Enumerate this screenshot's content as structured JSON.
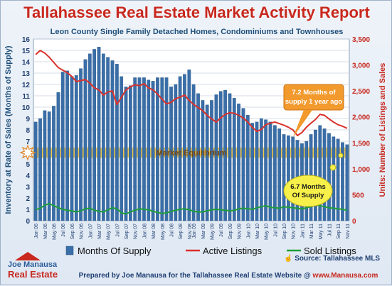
{
  "chart_data": {
    "type": "bar",
    "title": "Tallahassee Real Estate Market Activity Report",
    "subtitle": "Leon County Single Family Detached Homes, Condominiums and Townhouses",
    "ylabel_left": "Inventory at Rate of Sales (Months of Supply)",
    "ylabel_right": "Units: Number of Listings and Sales",
    "ylim_left": [
      0,
      16
    ],
    "ylim_right": [
      0,
      3500
    ],
    "yticks_left": [
      "0",
      "1",
      "2",
      "3",
      "4",
      "5",
      "6",
      "7",
      "8",
      "9",
      "10",
      "11",
      "12",
      "13",
      "14",
      "15",
      "16"
    ],
    "yticks_right": [
      "0",
      "500",
      "1,000",
      "1,500",
      "2,000",
      "2,500",
      "3,000",
      "3,500"
    ],
    "grid": true,
    "legend": "bottom",
    "series": [
      {
        "name": "Months Of Supply",
        "kind": "bar",
        "color": "#3a6ea8",
        "values": [
          8.7,
          9.0,
          9.7,
          9.6,
          10.1,
          11.3,
          13.1,
          13.2,
          12.7,
          12.8,
          13.4,
          14.2,
          14.7,
          15.1,
          15.3,
          14.7,
          14.4,
          14.1,
          13.8,
          12.7,
          11.8,
          11.9,
          12.6,
          12.6,
          12.6,
          12.4,
          12.3,
          12.6,
          12.6,
          12.6,
          11.8,
          12.0,
          12.7,
          12.9,
          13.3,
          12.0,
          11.2,
          10.6,
          10.2,
          10.6,
          11.1,
          11.4,
          11.5,
          11.2,
          10.8,
          10.3,
          9.9,
          9.3,
          8.6,
          8.7,
          9.0,
          8.9,
          8.7,
          8.4,
          8.1,
          7.6,
          7.5,
          7.4,
          7.1,
          6.8,
          7.0,
          7.6,
          8.0,
          8.4,
          8.1,
          7.7,
          7.4,
          7.2,
          6.9,
          6.7
        ]
      },
      {
        "name": "Active Listings",
        "kind": "line",
        "color": "#d9312b",
        "values": [
          3200,
          3280,
          3230,
          3150,
          3050,
          2950,
          2900,
          2850,
          2780,
          2680,
          2700,
          2720,
          2650,
          2560,
          2520,
          2420,
          2480,
          2500,
          2240,
          2380,
          2520,
          2580,
          2620,
          2600,
          2640,
          2560,
          2520,
          2440,
          2340,
          2250,
          2280,
          2350,
          2380,
          2420,
          2320,
          2240,
          2180,
          2120,
          2030,
          1960,
          1900,
          1980,
          2050,
          2080,
          2070,
          2030,
          1980,
          1900,
          1800,
          1720,
          1760,
          1850,
          1880,
          1900,
          1870,
          1840,
          1800,
          1750,
          1640,
          1700,
          1800,
          1880,
          1950,
          2050,
          2030,
          1960,
          1900,
          1850,
          1820,
          1780
        ]
      },
      {
        "name": "Sold Listings",
        "kind": "line",
        "color": "#1e9e3a",
        "values": [
          210,
          240,
          300,
          330,
          290,
          250,
          220,
          200,
          190,
          170,
          190,
          230,
          240,
          200,
          180,
          170,
          210,
          250,
          230,
          150,
          130,
          170,
          200,
          230,
          220,
          210,
          180,
          160,
          140,
          150,
          180,
          200,
          220,
          230,
          210,
          180,
          170,
          170,
          190,
          210,
          220,
          210,
          200,
          190,
          200,
          230,
          240,
          230,
          220,
          250,
          270,
          290,
          260,
          250,
          240,
          270,
          260,
          250,
          240,
          230,
          250,
          270,
          300,
          290,
          270,
          250,
          240,
          230,
          220,
          200
        ]
      }
    ],
    "x_tick_labels": [
      "Jan 06",
      "Mar 06",
      "May 06",
      "Jul 06",
      "Sep 06",
      "Nov 06",
      "Jan 07",
      "Mar 07",
      "May 07",
      "Jul 07",
      "Sep 07",
      "Nov 07",
      "Jan 08",
      "Mar 08",
      "May 08",
      "Jul 08",
      "Sep 08",
      "Nov 08",
      "Jan 09",
      "Mar 09",
      "May 09",
      "Jul 09",
      "Sep 09",
      "Nov 09",
      "Jan 10",
      "Mar 10",
      "May 10",
      "Jul 10",
      "Sep 10",
      "Nov 10",
      "Jan 11",
      "Mar 11",
      "May 11",
      "Jul 11",
      "Sep 11",
      "Nov 11"
    ],
    "annotations": [
      {
        "text": "Market Equilibrium",
        "y": 6
      },
      {
        "text_lines": [
          "7.2 Months of",
          "supply 1 year ago"
        ]
      },
      {
        "text_lines": [
          "6.7 Months",
          "Of Supply"
        ]
      }
    ]
  },
  "footer": {
    "prepared_by": "Prepared by Joe Manausa for the Tallahassee Real Estate Website",
    "url": "www.Manausa.com",
    "source": "Source: Tallahassee MLS"
  },
  "logo": {
    "line1": "Joe Manausa",
    "line2": "Real Estate"
  },
  "colors": {
    "title": "#c8281e",
    "subtitle": "#1f4f7a",
    "equilibrium_band": "#f2c33a",
    "callout_orange": "#f29a2e",
    "callout_yellow": "#f7f04a"
  }
}
